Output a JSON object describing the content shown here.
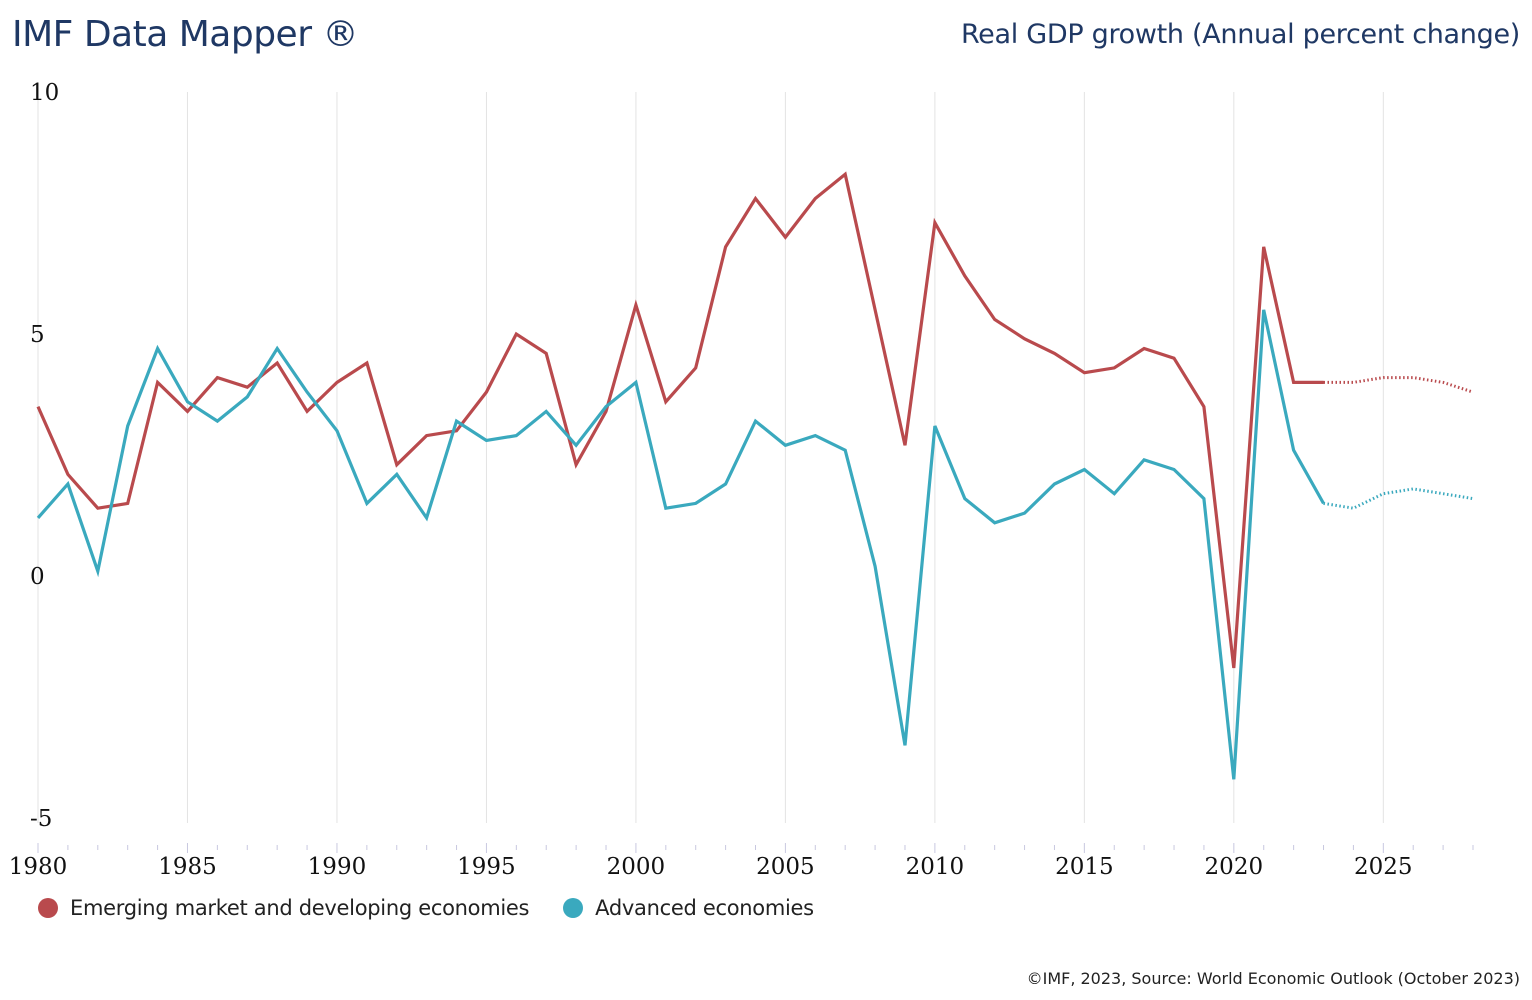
{
  "header": {
    "brand": "IMF Data Mapper ®",
    "indicator": "Real GDP growth (Annual percent change)"
  },
  "legend": [
    {
      "label": "Emerging market and developing economies",
      "color": "#b94a4d"
    },
    {
      "label": "Advanced economies",
      "color": "#3aa9be"
    }
  ],
  "footer": {
    "source": "©IMF, 2023, Source: World Economic Outlook (October 2023)"
  },
  "chart_data": {
    "type": "line",
    "title": "Real GDP growth (Annual percent change)",
    "xlabel": "",
    "ylabel": "",
    "xlim": [
      1980,
      2028
    ],
    "ylim": [
      -5,
      10
    ],
    "x_ticks": [
      1980,
      1985,
      1990,
      1995,
      2000,
      2005,
      2010,
      2015,
      2020,
      2025
    ],
    "y_ticks": [
      -5,
      0,
      5,
      10
    ],
    "grid": "vertical",
    "legend_position": "bottom-left",
    "forecast_start": 2023,
    "x": [
      1980,
      1981,
      1982,
      1983,
      1984,
      1985,
      1986,
      1987,
      1988,
      1989,
      1990,
      1991,
      1992,
      1993,
      1994,
      1995,
      1996,
      1997,
      1998,
      1999,
      2000,
      2001,
      2002,
      2003,
      2004,
      2005,
      2006,
      2007,
      2008,
      2009,
      2010,
      2011,
      2012,
      2013,
      2014,
      2015,
      2016,
      2017,
      2018,
      2019,
      2020,
      2021,
      2022,
      2023,
      2024,
      2025,
      2026,
      2027,
      2028
    ],
    "series": [
      {
        "name": "Emerging market and developing economies",
        "color": "#b94a4d",
        "values": [
          3.5,
          2.1,
          1.4,
          1.5,
          4.0,
          3.4,
          4.1,
          3.9,
          4.4,
          3.4,
          4.0,
          4.4,
          2.3,
          2.9,
          3.0,
          3.8,
          5.0,
          4.6,
          2.3,
          3.4,
          5.6,
          3.6,
          4.3,
          6.8,
          7.8,
          7.0,
          7.8,
          8.3,
          5.5,
          2.7,
          7.3,
          6.2,
          5.3,
          4.9,
          4.6,
          4.2,
          4.3,
          4.7,
          4.5,
          3.5,
          -1.9,
          6.8,
          4.0,
          4.0,
          4.0,
          4.1,
          4.1,
          4.0,
          3.8
        ]
      },
      {
        "name": "Advanced economies",
        "color": "#3aa9be",
        "values": [
          1.2,
          1.9,
          0.1,
          3.1,
          4.7,
          3.6,
          3.2,
          3.7,
          4.7,
          3.8,
          3.0,
          1.5,
          2.1,
          1.2,
          3.2,
          2.8,
          2.9,
          3.4,
          2.7,
          3.5,
          4.0,
          1.4,
          1.5,
          1.9,
          3.2,
          2.7,
          2.9,
          2.6,
          0.2,
          -3.5,
          3.1,
          1.6,
          1.1,
          1.3,
          1.9,
          2.2,
          1.7,
          2.4,
          2.2,
          1.6,
          -4.2,
          5.5,
          2.6,
          1.5,
          1.4,
          1.7,
          1.8,
          1.7,
          1.6
        ]
      }
    ]
  }
}
